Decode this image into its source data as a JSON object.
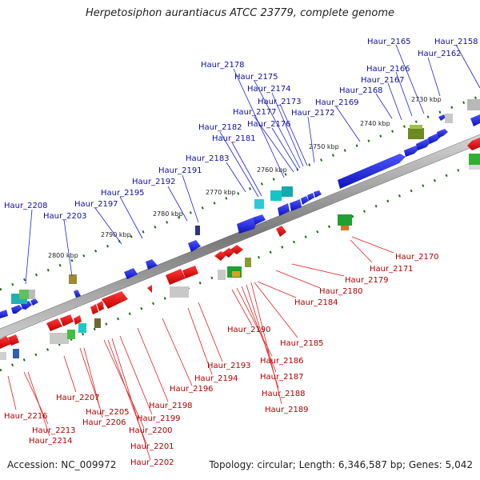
{
  "title": "Herpetosiphon aurantiacus ATCC 23779, complete genome",
  "footer": {
    "accession": "Accession: NC_009972",
    "summary": "Topology: circular; Length: 6,346,587 bp; Genes: 5,042"
  },
  "colors": {
    "forward": "#1a22d8",
    "reverse": "#e60f0f",
    "label_forward": "#1010a0",
    "label_reverse": "#b00000",
    "axis": "#888888",
    "ticks": "#1a6e1a"
  },
  "scale_labels": [
    "2730 kbp",
    "2740 kbp",
    "2750 kbp",
    "2760 kbp",
    "2770 kbp",
    "2780 kbp",
    "2790 kbp",
    "2800 kbp"
  ],
  "forward_genes": [
    "Haur_2208",
    "Haur_2203",
    "Haur_2197",
    "Haur_2195",
    "Haur_2192",
    "Haur_2191",
    "Haur_2183",
    "Haur_2182",
    "Haur_2181",
    "Haur_2178",
    "Haur_2177",
    "Haur_2176",
    "Haur_2175",
    "Haur_2174",
    "Haur_2173",
    "Haur_2172",
    "Haur_2169",
    "Haur_2168",
    "Haur_2167",
    "Haur_2166",
    "Haur_2165",
    "Haur_2162",
    "Haur_2158"
  ],
  "reverse_genes": [
    "Haur_2216",
    "Haur_2213",
    "Haur_2214",
    "Haur_2207",
    "Haur_2205",
    "Haur_2206",
    "Haur_2200",
    "Haur_2201",
    "Haur_2202",
    "Haur_2199",
    "Haur_2198",
    "Haur_2196",
    "Haur_2194",
    "Haur_2193",
    "Haur_2190",
    "Haur_2186",
    "Haur_2187",
    "Haur_2188",
    "Haur_2189",
    "Haur_2185",
    "Haur_2184",
    "Haur_2180",
    "Haur_2179",
    "Haur_2171",
    "Haur_2170"
  ]
}
